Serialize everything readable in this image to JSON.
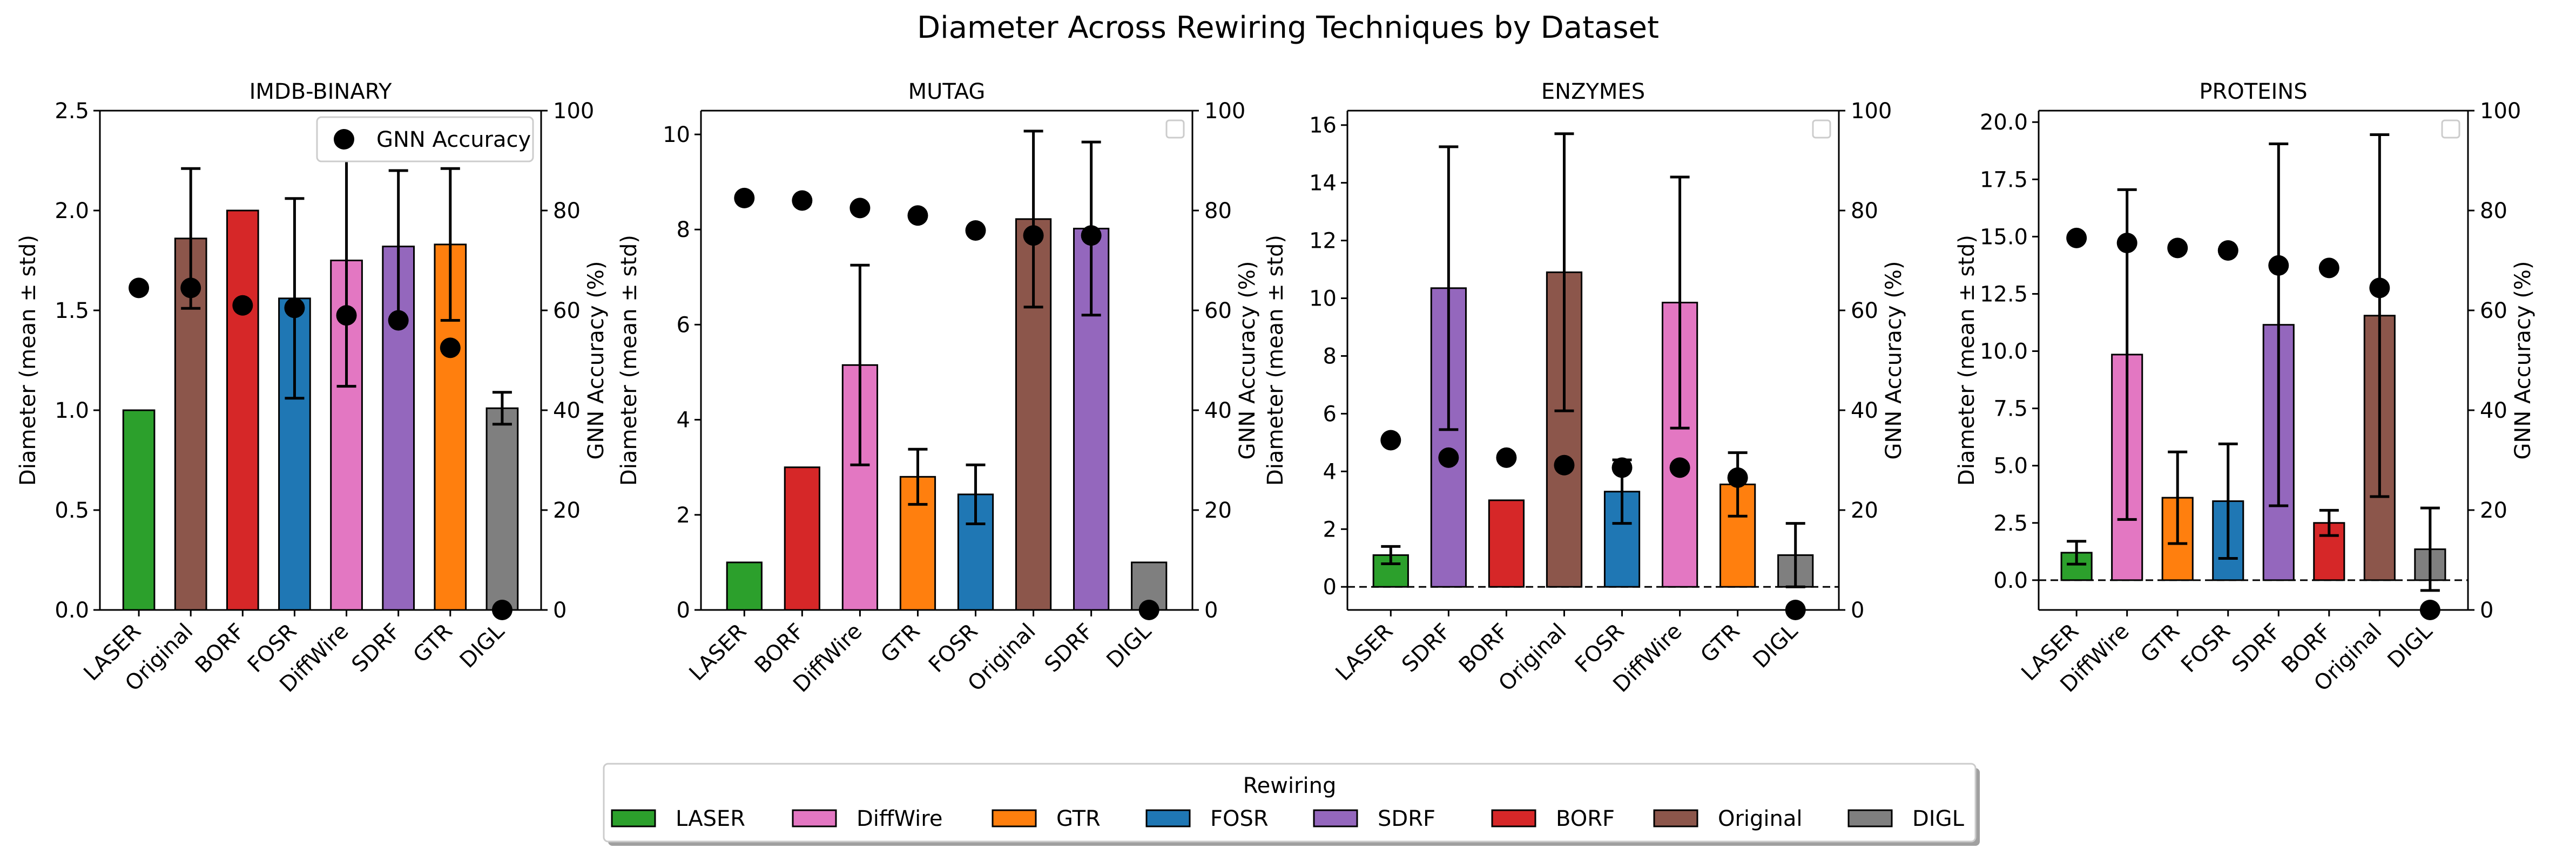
{
  "figure_title": "Diameter Across Rewiring Techniques by Dataset",
  "colors": {
    "LASER": "#2ca02c",
    "DiffWire": "#e377c2",
    "GTR": "#ff7f0e",
    "FOSR": "#1f77b4",
    "SDRF": "#9467bd",
    "BORF": "#d62728",
    "Original": "#8c564b",
    "DIGL": "#7f7f7f",
    "marker": "#000000"
  },
  "legend": {
    "title": "Rewiring",
    "items": [
      "LASER",
      "DiffWire",
      "GTR",
      "FOSR",
      "SDRF",
      "BORF",
      "Original",
      "DIGL"
    ]
  },
  "chart_data": [
    {
      "type": "bar",
      "title": "IMDB-BINARY",
      "ylabel": "Diameter (mean ± std)",
      "y2label": "GNN Accuracy (%)",
      "ylim": [
        0,
        2.5
      ],
      "yticks": [
        0.0,
        0.5,
        1.0,
        1.5,
        2.0,
        2.5
      ],
      "ytick_labels": [
        "0.0",
        "0.5",
        "1.0",
        "1.5",
        "2.0",
        "2.5"
      ],
      "y2lim": [
        0,
        100
      ],
      "y2ticks": [
        0,
        20,
        40,
        60,
        80,
        100
      ],
      "y2tick_labels": [
        "0",
        "20",
        "40",
        "60",
        "80",
        "100"
      ],
      "dashed_zero_line": false,
      "legend_entry": "GNN Accuracy",
      "categories": [
        "LASER",
        "Original",
        "BORF",
        "FOSR",
        "DiffWire",
        "SDRF",
        "GTR",
        "DIGL"
      ],
      "values": [
        1.0,
        1.86,
        2.0,
        1.56,
        1.75,
        1.82,
        1.83,
        1.01
      ],
      "errors": [
        0,
        0.35,
        0,
        0.5,
        0.63,
        0.38,
        0.38,
        0.08
      ],
      "accuracy": [
        64.5,
        64.5,
        61,
        60.5,
        59,
        58,
        52.5,
        0
      ]
    },
    {
      "type": "bar",
      "title": "MUTAG",
      "ylabel": "Diameter (mean ± std)",
      "y2label": "GNN Accuracy (%)",
      "ylim": [
        0,
        10.5
      ],
      "yticks": [
        0,
        2,
        4,
        6,
        8,
        10
      ],
      "ytick_labels": [
        "0",
        "2",
        "4",
        "6",
        "8",
        "10"
      ],
      "y2lim": [
        0,
        100
      ],
      "y2ticks": [
        0,
        20,
        40,
        60,
        80,
        100
      ],
      "y2tick_labels": [
        "0",
        "20",
        "40",
        "60",
        "80",
        "100"
      ],
      "dashed_zero_line": false,
      "categories": [
        "LASER",
        "BORF",
        "DiffWire",
        "GTR",
        "FOSR",
        "Original",
        "SDRF",
        "DIGL"
      ],
      "values": [
        1.0,
        3.0,
        5.15,
        2.8,
        2.43,
        8.22,
        8.02,
        1.0
      ],
      "errors": [
        0,
        0,
        2.1,
        0.58,
        0.62,
        1.85,
        1.82,
        0
      ],
      "accuracy": [
        82.5,
        82,
        80.5,
        79,
        76,
        75,
        75,
        0
      ]
    },
    {
      "type": "bar",
      "title": "ENZYMES",
      "ylabel": "Diameter (mean ± std)",
      "y2label": "GNN Accuracy (%)",
      "ylim": [
        -0.8,
        16.5
      ],
      "yticks": [
        0,
        2,
        4,
        6,
        8,
        10,
        12,
        14,
        16
      ],
      "ytick_labels": [
        "0",
        "2",
        "4",
        "6",
        "8",
        "10",
        "12",
        "14",
        "16"
      ],
      "y2lim": [
        0,
        100
      ],
      "y2ticks": [
        0,
        20,
        40,
        60,
        80,
        100
      ],
      "y2tick_labels": [
        "0",
        "20",
        "40",
        "60",
        "80",
        "100"
      ],
      "dashed_zero_line": true,
      "categories": [
        "LASER",
        "SDRF",
        "BORF",
        "Original",
        "FOSR",
        "DiffWire",
        "GTR",
        "DIGL"
      ],
      "values": [
        1.1,
        10.35,
        3.0,
        10.9,
        3.3,
        9.85,
        3.55,
        1.1
      ],
      "errors": [
        0.3,
        4.9,
        0,
        4.8,
        1.1,
        4.35,
        1.1,
        1.1
      ],
      "accuracy": [
        34,
        30.5,
        30.5,
        29,
        28.5,
        28.5,
        26.5,
        0
      ]
    },
    {
      "type": "bar",
      "title": "PROTEINS",
      "ylabel": "Diameter (mean ± std)",
      "y2label": "GNN Accuracy (%)",
      "ylim": [
        -1.3,
        20.5
      ],
      "yticks": [
        0.0,
        2.5,
        5.0,
        7.5,
        10.0,
        12.5,
        15.0,
        17.5,
        20.0
      ],
      "ytick_labels": [
        "0.0",
        "2.5",
        "5.0",
        "7.5",
        "10.0",
        "12.5",
        "15.0",
        "17.5",
        "20.0"
      ],
      "y2lim": [
        0,
        100
      ],
      "y2ticks": [
        0,
        20,
        40,
        60,
        80,
        100
      ],
      "y2tick_labels": [
        "0",
        "20",
        "40",
        "60",
        "80",
        "100"
      ],
      "dashed_zero_line": true,
      "categories": [
        "LASER",
        "DiffWire",
        "GTR",
        "FOSR",
        "SDRF",
        "BORF",
        "Original",
        "DIGL"
      ],
      "values": [
        1.2,
        9.85,
        3.6,
        3.45,
        11.15,
        2.5,
        11.55,
        1.35
      ],
      "errors": [
        0.5,
        7.2,
        2.0,
        2.5,
        7.9,
        0.55,
        7.9,
        1.8
      ],
      "accuracy": [
        74.5,
        73.5,
        72.5,
        72,
        69,
        68.5,
        64.5,
        0
      ]
    }
  ]
}
